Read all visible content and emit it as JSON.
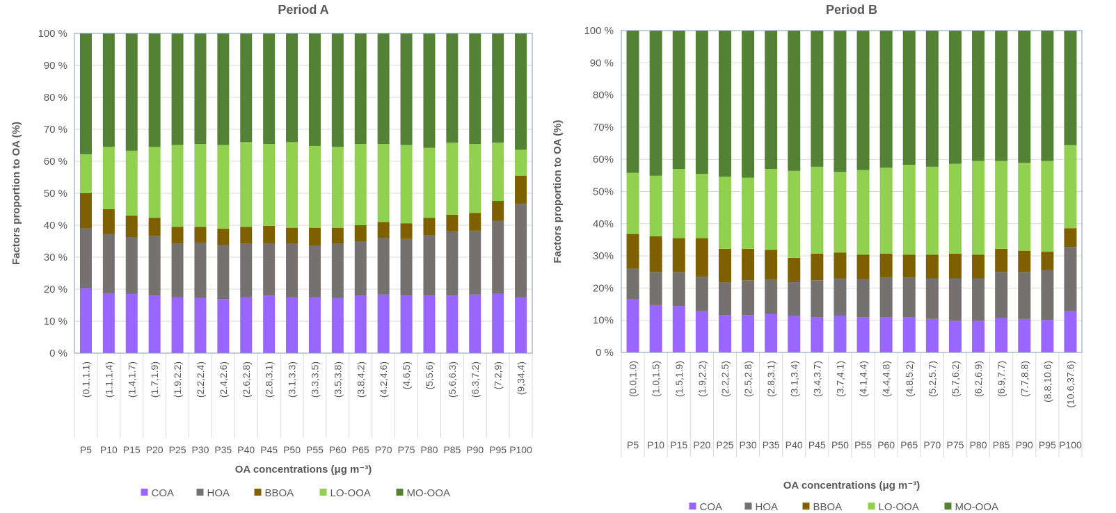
{
  "chart_data": [
    {
      "type": "bar",
      "stacked": true,
      "title": "Period A",
      "xlabel": "OA concentrations (μg m⁻³)",
      "ylabel": "Factors proportion to OA (%)",
      "ylim": [
        0,
        100
      ],
      "yticks": [
        "0 %",
        "10 %",
        "20 %",
        "30 %",
        "40 %",
        "50 %",
        "60 %",
        "70 %",
        "80 %",
        "90 %",
        "100 %"
      ],
      "grid": true,
      "legend_position": "bottom",
      "categories": [
        "P5",
        "P10",
        "P15",
        "P20",
        "P25",
        "P30",
        "P35",
        "P40",
        "P45",
        "P50",
        "P55",
        "P60",
        "P65",
        "P70",
        "P75",
        "P80",
        "P85",
        "P90",
        "P95",
        "P100"
      ],
      "ranges": [
        "(0.1,1.1)",
        "(1.1,1.4)",
        "(1.4,1.7)",
        "(1.7,1.9)",
        "(1.9,2.2)",
        "(2.2,2.4)",
        "(2.4,2.6)",
        "(2.6,2.8)",
        "(2.8,3.1)",
        "(3.1,3.3)",
        "(3.3,3.5)",
        "(3.5,3.8)",
        "(3.8,4.2)",
        "(4.2,4.6)",
        "(4.6,5)",
        "(5,5.6)",
        "(5.6,6.3)",
        "(6.3,7.2)",
        "(7.2,9)",
        "(9,34.4)"
      ],
      "series": [
        {
          "name": "COA",
          "color": "#9966FF",
          "values": [
            20.3,
            18.8,
            18.5,
            18.0,
            17.5,
            17.2,
            16.9,
            17.5,
            18.0,
            17.5,
            17.5,
            17.2,
            18.0,
            18.3,
            18.0,
            18.0,
            18.0,
            18.3,
            18.6,
            17.5
          ]
        },
        {
          "name": "HOA",
          "color": "#767171",
          "values": [
            18.7,
            18.4,
            17.8,
            18.6,
            16.7,
            17.3,
            16.9,
            16.7,
            16.2,
            16.7,
            16.1,
            17.0,
            17.0,
            17.7,
            17.7,
            18.8,
            20.0,
            20.0,
            22.8,
            29.2
          ]
        },
        {
          "name": "BBOA",
          "color": "#7F6000",
          "values": [
            11.0,
            7.8,
            6.7,
            5.7,
            5.3,
            5.0,
            5.1,
            5.3,
            5.6,
            5.0,
            5.6,
            5.0,
            5.0,
            5.0,
            4.9,
            5.5,
            5.3,
            5.5,
            6.2,
            8.8
          ]
        },
        {
          "name": "LO-OOA",
          "color": "#92D050",
          "values": [
            12.2,
            19.5,
            20.3,
            22.2,
            25.6,
            25.9,
            26.2,
            26.5,
            25.6,
            26.8,
            25.6,
            25.3,
            25.4,
            24.4,
            24.5,
            21.9,
            22.5,
            21.6,
            18.2,
            8.1
          ]
        },
        {
          "name": "MO-OOA",
          "color": "#548235",
          "values": [
            37.8,
            35.5,
            36.7,
            35.5,
            34.9,
            34.6,
            34.9,
            34.0,
            34.6,
            34.0,
            35.2,
            35.5,
            34.6,
            34.6,
            34.9,
            35.8,
            34.2,
            34.6,
            34.2,
            36.4
          ]
        }
      ]
    },
    {
      "type": "bar",
      "stacked": true,
      "title": "Period B",
      "xlabel": "OA concentrations (μg m⁻³)",
      "ylabel": "Factors proportion to OA (%)",
      "ylim": [
        0,
        100
      ],
      "yticks": [
        "0 %",
        "10%",
        "20%",
        "30%",
        "40%",
        "50%",
        "60%",
        "70%",
        "80%",
        "90 %",
        "100 %"
      ],
      "grid": true,
      "legend_position": "bottom",
      "categories": [
        "P5",
        "P10",
        "P15",
        "P20",
        "P25",
        "P30",
        "P35",
        "P40",
        "P45",
        "P50",
        "P55",
        "P60",
        "P65",
        "P70",
        "P75",
        "P80",
        "P85",
        "P90",
        "P95",
        "P100"
      ],
      "ranges": [
        "(0.0,1.0)",
        "(1.0,1.5)",
        "(1.5,1.9)",
        "(1.9,2.2)",
        "(2.2,2.5)",
        "(2.5,2.8)",
        "(2.8,3.1)",
        "(3.1,3.4)",
        "(3.4,3.7)",
        "(3.7,4.1)",
        "(4.1,4.4)",
        "(4.4,4.8)",
        "(4.8,5.2)",
        "(5.2,5.7)",
        "(5.7,6.2)",
        "(6.2,6.9)",
        "(6.9,7.7)",
        "(7.7,8.8)",
        "(8.8,10.6)",
        "(10.6,37.6)"
      ],
      "series": [
        {
          "name": "COA",
          "color": "#9966FF",
          "values": [
            16.5,
            14.7,
            14.4,
            12.8,
            11.6,
            11.6,
            11.9,
            11.3,
            11.0,
            11.3,
            11.0,
            11.0,
            11.0,
            10.4,
            9.8,
            9.8,
            10.7,
            10.4,
            10.1,
            12.8
          ]
        },
        {
          "name": "HOA",
          "color": "#767171",
          "values": [
            9.5,
            10.3,
            10.6,
            10.7,
            10.2,
            10.8,
            10.8,
            10.5,
            11.4,
            11.7,
            11.7,
            12.3,
            12.3,
            12.6,
            13.2,
            13.2,
            14.3,
            14.6,
            15.5,
            20.0
          ]
        },
        {
          "name": "BBOA",
          "color": "#7F6000",
          "values": [
            10.8,
            11.1,
            10.5,
            12.0,
            10.4,
            9.8,
            9.2,
            7.6,
            8.3,
            8.0,
            7.7,
            7.4,
            7.1,
            7.4,
            7.7,
            7.4,
            7.2,
            6.6,
            5.7,
            5.8
          ]
        },
        {
          "name": "LO-OOA",
          "color": "#92D050",
          "values": [
            19.0,
            18.8,
            21.5,
            20.0,
            22.4,
            22.1,
            25.1,
            27.0,
            27.0,
            25.1,
            26.3,
            26.7,
            27.9,
            27.3,
            27.9,
            29.1,
            27.3,
            27.3,
            28.2,
            25.8
          ]
        },
        {
          "name": "MO-OOA",
          "color": "#548235",
          "values": [
            44.2,
            45.1,
            43.0,
            44.5,
            45.4,
            45.7,
            43.0,
            43.6,
            42.3,
            43.9,
            43.3,
            42.6,
            41.7,
            42.3,
            41.4,
            40.5,
            40.5,
            41.1,
            40.5,
            35.6
          ]
        }
      ]
    }
  ]
}
